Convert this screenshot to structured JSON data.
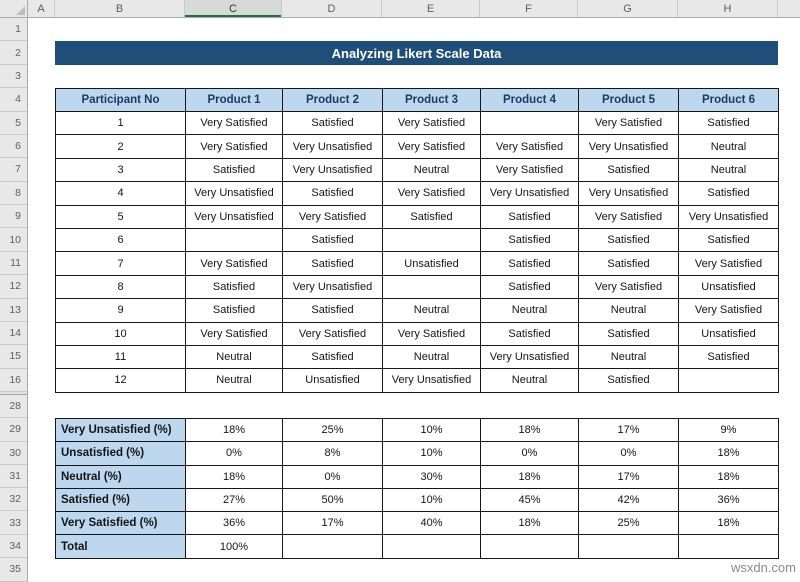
{
  "app": {
    "watermark": "wsxdn.com"
  },
  "spreadsheet": {
    "title": "Analyzing Likert Scale Data",
    "column_headers": [
      "A",
      "B",
      "C",
      "D",
      "E",
      "F",
      "G",
      "H"
    ],
    "selected_column": "C",
    "row_numbers_top": [
      "1",
      "2",
      "3",
      "4",
      "5",
      "6",
      "7",
      "8",
      "9",
      "10",
      "11",
      "12",
      "13",
      "14",
      "15",
      "16"
    ],
    "row_numbers_bottom": [
      "28",
      "29",
      "30",
      "31",
      "32",
      "33",
      "34",
      "35"
    ]
  },
  "main_table": {
    "headers": [
      "Participant No",
      "Product 1",
      "Product 2",
      "Product 3",
      "Product 4",
      "Product 5",
      "Product 6"
    ],
    "rows": [
      [
        "1",
        "Very Satisfied",
        "Satisfied",
        "Very Satisfied",
        "",
        "Very Satisfied",
        "Satisfied"
      ],
      [
        "2",
        "Very Satisfied",
        "Very Unsatisfied",
        "Very Satisfied",
        "Very Satisfied",
        "Very Unsatisfied",
        "Neutral"
      ],
      [
        "3",
        "Satisfied",
        "Very Unsatisfied",
        "Neutral",
        "Very Satisfied",
        "Satisfied",
        "Neutral"
      ],
      [
        "4",
        "Very Unsatisfied",
        "Satisfied",
        "Very Satisfied",
        "Very Unsatisfied",
        "Very Unsatisfied",
        "Satisfied"
      ],
      [
        "5",
        "Very Unsatisfied",
        "Very Satisfied",
        "Satisfied",
        "Satisfied",
        "Very Satisfied",
        "Very Unsatisfied"
      ],
      [
        "6",
        "",
        "Satisfied",
        "",
        "Satisfied",
        "Satisfied",
        "Satisfied"
      ],
      [
        "7",
        "Very Satisfied",
        "Satisfied",
        "Unsatisfied",
        "Satisfied",
        "Satisfied",
        "Very Satisfied"
      ],
      [
        "8",
        "Satisfied",
        "Very Unsatisfied",
        "",
        "Satisfied",
        "Very Satisfied",
        "Unsatisfied"
      ],
      [
        "9",
        "Satisfied",
        "Satisfied",
        "Neutral",
        "Neutral",
        "Neutral",
        "Very Satisfied"
      ],
      [
        "10",
        "Very Satisfied",
        "Very Satisfied",
        "Very Satisfied",
        "Satisfied",
        "Satisfied",
        "Unsatisfied"
      ],
      [
        "11",
        "Neutral",
        "Satisfied",
        "Neutral",
        "Very Unsatisfied",
        "Neutral",
        "Satisfied"
      ],
      [
        "12",
        "Neutral",
        "Unsatisfied",
        "Very Unsatisfied",
        "Neutral",
        "Satisfied",
        ""
      ]
    ]
  },
  "summary_table": {
    "rows": [
      {
        "label": "Very Unsatisfied (%)",
        "values": [
          "18%",
          "25%",
          "10%",
          "18%",
          "17%",
          "9%"
        ]
      },
      {
        "label": "Unsatisfied (%)",
        "values": [
          "0%",
          "8%",
          "10%",
          "0%",
          "0%",
          "18%"
        ]
      },
      {
        "label": "Neutral (%)",
        "values": [
          "18%",
          "0%",
          "30%",
          "18%",
          "17%",
          "18%"
        ]
      },
      {
        "label": "Satisfied (%)",
        "values": [
          "27%",
          "50%",
          "10%",
          "45%",
          "42%",
          "36%"
        ]
      },
      {
        "label": "Very Satisfied (%)",
        "values": [
          "36%",
          "17%",
          "40%",
          "18%",
          "25%",
          "18%"
        ]
      },
      {
        "label": "Total",
        "values": [
          "100%",
          "",
          "",
          "",
          "",
          ""
        ]
      }
    ]
  },
  "colors": {
    "title_bar": "#1F4E79",
    "header_fill": "#BDD7EE",
    "header_text": "#1F3864",
    "selected_column_accent": "#1E7145"
  }
}
